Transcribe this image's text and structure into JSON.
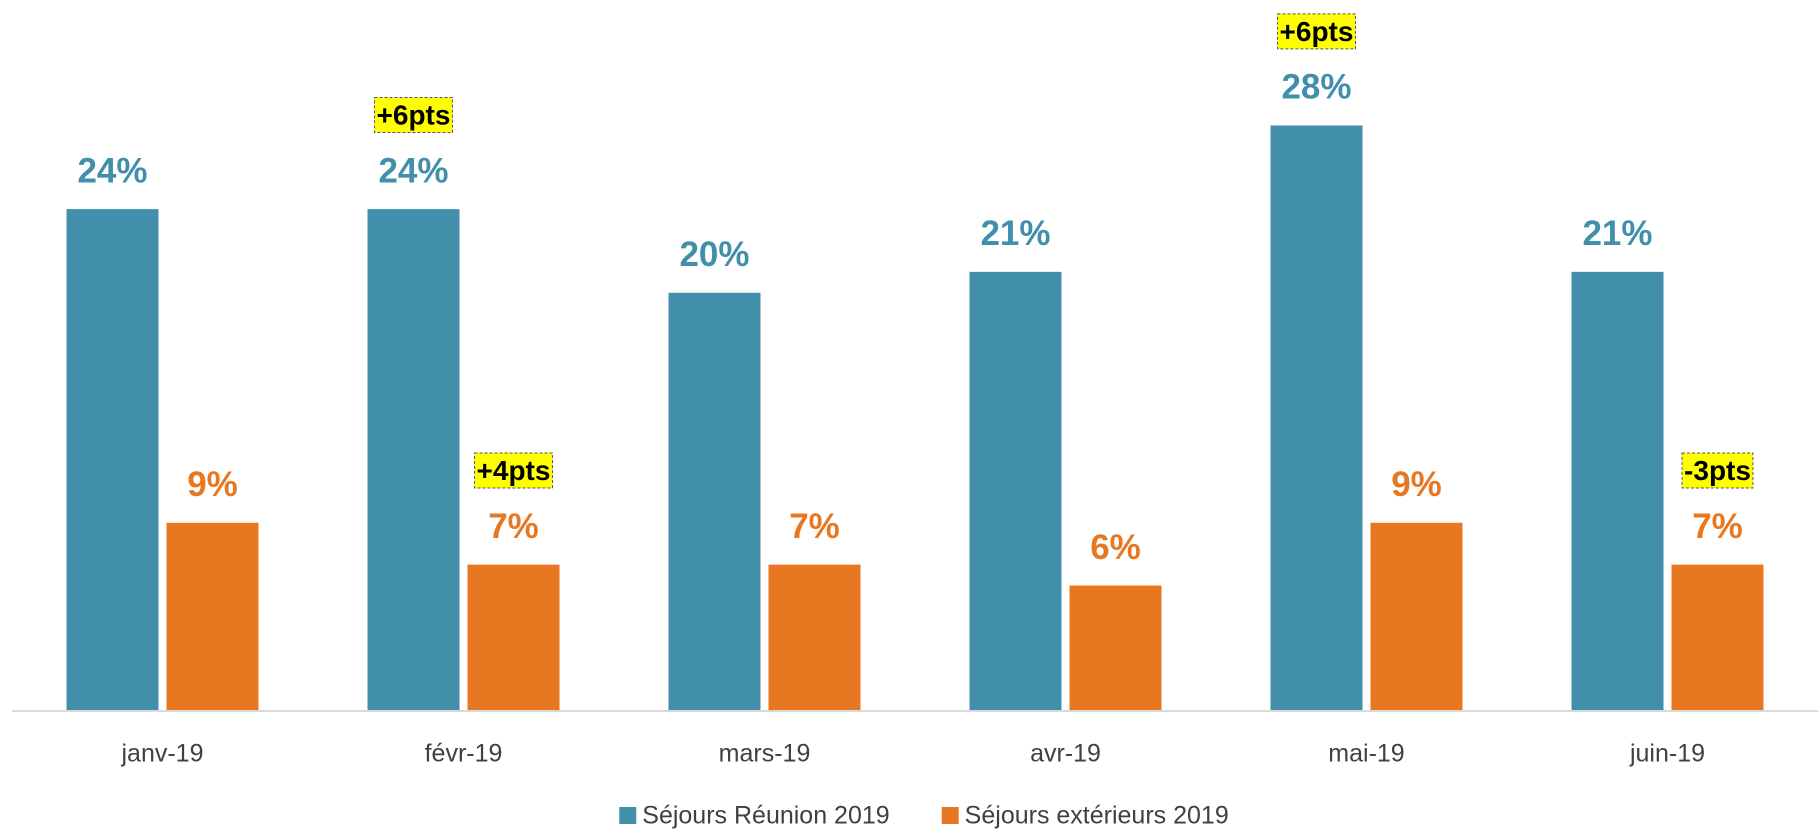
{
  "chart_data": {
    "type": "bar",
    "categories": [
      "janv-19",
      "févr-19",
      "mars-19",
      "avr-19",
      "mai-19",
      "juin-19"
    ],
    "series": [
      {
        "name": "Séjours Réunion 2019",
        "color": "#418fab",
        "values": [
          24,
          24,
          20,
          21,
          28,
          21
        ],
        "value_labels": [
          "24%",
          "24%",
          "20%",
          "21%",
          "28%",
          "21%"
        ]
      },
      {
        "name": "Séjours extérieurs 2019",
        "color": "#e87722",
        "values": [
          9,
          7,
          7,
          6,
          9,
          7
        ],
        "value_labels": [
          "9%",
          "7%",
          "7%",
          "6%",
          "9%",
          "7%"
        ]
      }
    ],
    "ylim": [
      0,
      34
    ],
    "annotations": [
      {
        "text": "+6pts",
        "category": "févr-19",
        "series": "Séjours Réunion 2019"
      },
      {
        "text": "+4pts",
        "category": "févr-19",
        "series": "Séjours extérieurs 2019"
      },
      {
        "text": "+6pts",
        "category": "mai-19",
        "series": "Séjours Réunion 2019"
      },
      {
        "text": "-3pts",
        "category": "juin-19",
        "series": "Séjours extérieurs 2019"
      }
    ]
  }
}
